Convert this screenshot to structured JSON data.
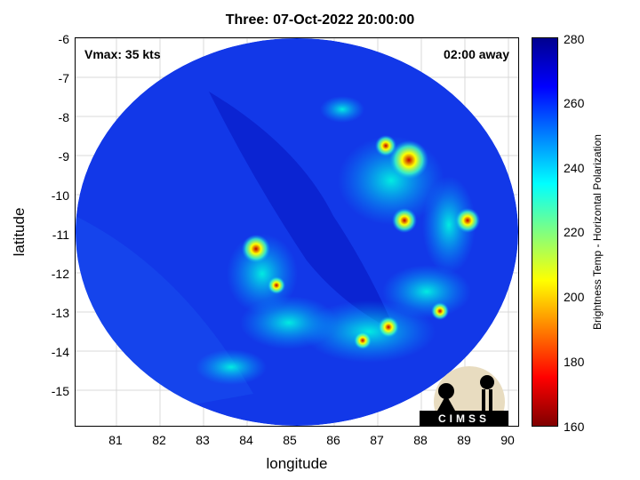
{
  "title": "Three: 07-Oct-2022 20:00:00",
  "vmax_label": "Vmax: 35 kts",
  "away_label": "02:00 away",
  "xlabel": "longitude",
  "ylabel": "latitude",
  "xticks": [
    "81",
    "82",
    "83",
    "84",
    "85",
    "86",
    "87",
    "88",
    "89",
    "90"
  ],
  "yticks": [
    "-6",
    "-7",
    "-8",
    "-9",
    "-10",
    "-11",
    "-12",
    "-13",
    "-14",
    "-15"
  ],
  "colorbar": {
    "label": "Brightness Temp - Horizontal Polarization",
    "ticks": [
      "280",
      "260",
      "240",
      "220",
      "200",
      "180",
      "160"
    ]
  },
  "logo_text": "CIMSS",
  "colors": {
    "background_cold": "#1a2ee6",
    "storm_warm": "#ff2000"
  }
}
